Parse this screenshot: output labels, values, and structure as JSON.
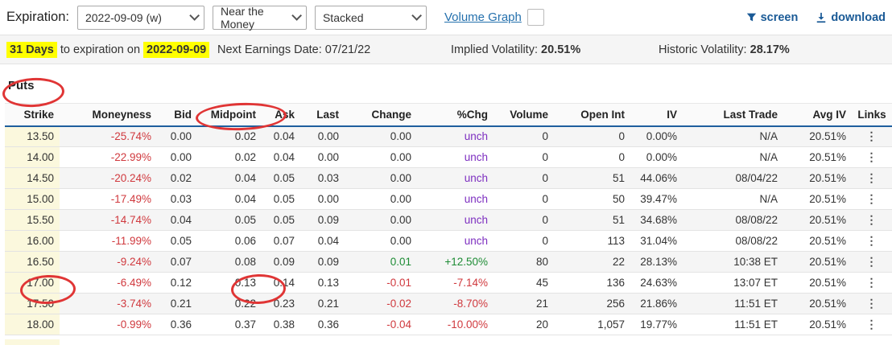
{
  "toolbar": {
    "expiration_label": "Expiration:",
    "expiration_value": "2022-09-09 (w)",
    "strikes_filter_value": "Near the Money",
    "view_mode_value": "Stacked",
    "volume_graph_label": "Volume Graph",
    "volume_graph_checked": false,
    "screen_label": "screen",
    "download_label": "download"
  },
  "icons": {
    "screen": "filter-funnel-icon",
    "download": "download-icon",
    "select_caret": "chevron-down-icon",
    "row_links": "vertical-ellipsis-icon"
  },
  "infobar": {
    "days_highlight": "31 Days",
    "between_text": "to expiration on",
    "date_highlight": "2022-09-09",
    "next_earnings": "Next Earnings Date: 07/21/22",
    "implied_vol_label": "Implied Volatility:",
    "implied_vol_value": "20.51%",
    "historic_vol_label": "Historic Volatility:",
    "historic_vol_value": "28.17%"
  },
  "table": {
    "section_title": "Puts",
    "columns": [
      "Strike",
      "Moneyness",
      "Bid",
      "Midpoint",
      "Ask",
      "Last",
      "Change",
      "%Chg",
      "Volume",
      "Open Int",
      "IV",
      "Last Trade",
      "Avg IV",
      "Links"
    ],
    "links_cell_glyph": "⋮",
    "rows": [
      {
        "strike": "13.50",
        "moneyness": "-25.74%",
        "bid": "0.00",
        "midpoint": "0.02",
        "ask": "0.04",
        "last": "0.00",
        "change": "0.00",
        "pct_chg": "unch",
        "volume": "0",
        "open_int": "0",
        "iv": "0.00%",
        "last_trade": "N/A",
        "avg_iv": "20.51%",
        "trend": "flat"
      },
      {
        "strike": "14.00",
        "moneyness": "-22.99%",
        "bid": "0.00",
        "midpoint": "0.02",
        "ask": "0.04",
        "last": "0.00",
        "change": "0.00",
        "pct_chg": "unch",
        "volume": "0",
        "open_int": "0",
        "iv": "0.00%",
        "last_trade": "N/A",
        "avg_iv": "20.51%",
        "trend": "flat"
      },
      {
        "strike": "14.50",
        "moneyness": "-20.24%",
        "bid": "0.02",
        "midpoint": "0.04",
        "ask": "0.05",
        "last": "0.03",
        "change": "0.00",
        "pct_chg": "unch",
        "volume": "0",
        "open_int": "51",
        "iv": "44.06%",
        "last_trade": "08/04/22",
        "avg_iv": "20.51%",
        "trend": "flat"
      },
      {
        "strike": "15.00",
        "moneyness": "-17.49%",
        "bid": "0.03",
        "midpoint": "0.04",
        "ask": "0.05",
        "last": "0.00",
        "change": "0.00",
        "pct_chg": "unch",
        "volume": "0",
        "open_int": "50",
        "iv": "39.47%",
        "last_trade": "N/A",
        "avg_iv": "20.51%",
        "trend": "flat"
      },
      {
        "strike": "15.50",
        "moneyness": "-14.74%",
        "bid": "0.04",
        "midpoint": "0.05",
        "ask": "0.05",
        "last": "0.09",
        "change": "0.00",
        "pct_chg": "unch",
        "volume": "0",
        "open_int": "51",
        "iv": "34.68%",
        "last_trade": "08/08/22",
        "avg_iv": "20.51%",
        "trend": "flat"
      },
      {
        "strike": "16.00",
        "moneyness": "-11.99%",
        "bid": "0.05",
        "midpoint": "0.06",
        "ask": "0.07",
        "last": "0.04",
        "change": "0.00",
        "pct_chg": "unch",
        "volume": "0",
        "open_int": "113",
        "iv": "31.04%",
        "last_trade": "08/08/22",
        "avg_iv": "20.51%",
        "trend": "flat"
      },
      {
        "strike": "16.50",
        "moneyness": "-9.24%",
        "bid": "0.07",
        "midpoint": "0.08",
        "ask": "0.09",
        "last": "0.09",
        "change": "0.01",
        "pct_chg": "+12.50%",
        "volume": "80",
        "open_int": "22",
        "iv": "28.13%",
        "last_trade": "10:38 ET",
        "avg_iv": "20.51%",
        "trend": "up"
      },
      {
        "strike": "17.00",
        "moneyness": "-6.49%",
        "bid": "0.12",
        "midpoint": "0.13",
        "ask": "0.14",
        "last": "0.13",
        "change": "-0.01",
        "pct_chg": "-7.14%",
        "volume": "45",
        "open_int": "136",
        "iv": "24.63%",
        "last_trade": "13:07 ET",
        "avg_iv": "20.51%",
        "trend": "down"
      },
      {
        "strike": "17.50",
        "moneyness": "-3.74%",
        "bid": "0.21",
        "midpoint": "0.22",
        "ask": "0.23",
        "last": "0.21",
        "change": "-0.02",
        "pct_chg": "-8.70%",
        "volume": "21",
        "open_int": "256",
        "iv": "21.86%",
        "last_trade": "11:51 ET",
        "avg_iv": "20.51%",
        "trend": "down"
      },
      {
        "strike": "18.00",
        "moneyness": "-0.99%",
        "bid": "0.36",
        "midpoint": "0.37",
        "ask": "0.38",
        "last": "0.36",
        "change": "-0.04",
        "pct_chg": "-10.00%",
        "volume": "20",
        "open_int": "1,057",
        "iv": "19.77%",
        "last_trade": "11:51 ET",
        "avg_iv": "20.51%",
        "trend": "down"
      }
    ],
    "annotations": [
      "circle around Puts",
      "circle around Midpoint column header",
      "circle around strike 17.00",
      "circle around midpoint 0.13"
    ]
  },
  "colors": {
    "accent_navy": "#1a5a96",
    "link_blue": "#2470ad",
    "negative_red": "#d0393e",
    "positive_green": "#1e8c35",
    "unchanged_purple": "#7d2fc0",
    "highlight_yellow": "#ffff00",
    "strike_column_bg": "#fbf8dd",
    "header_rule_blue": "#1e5f9e",
    "annotation_red": "#e03535"
  }
}
